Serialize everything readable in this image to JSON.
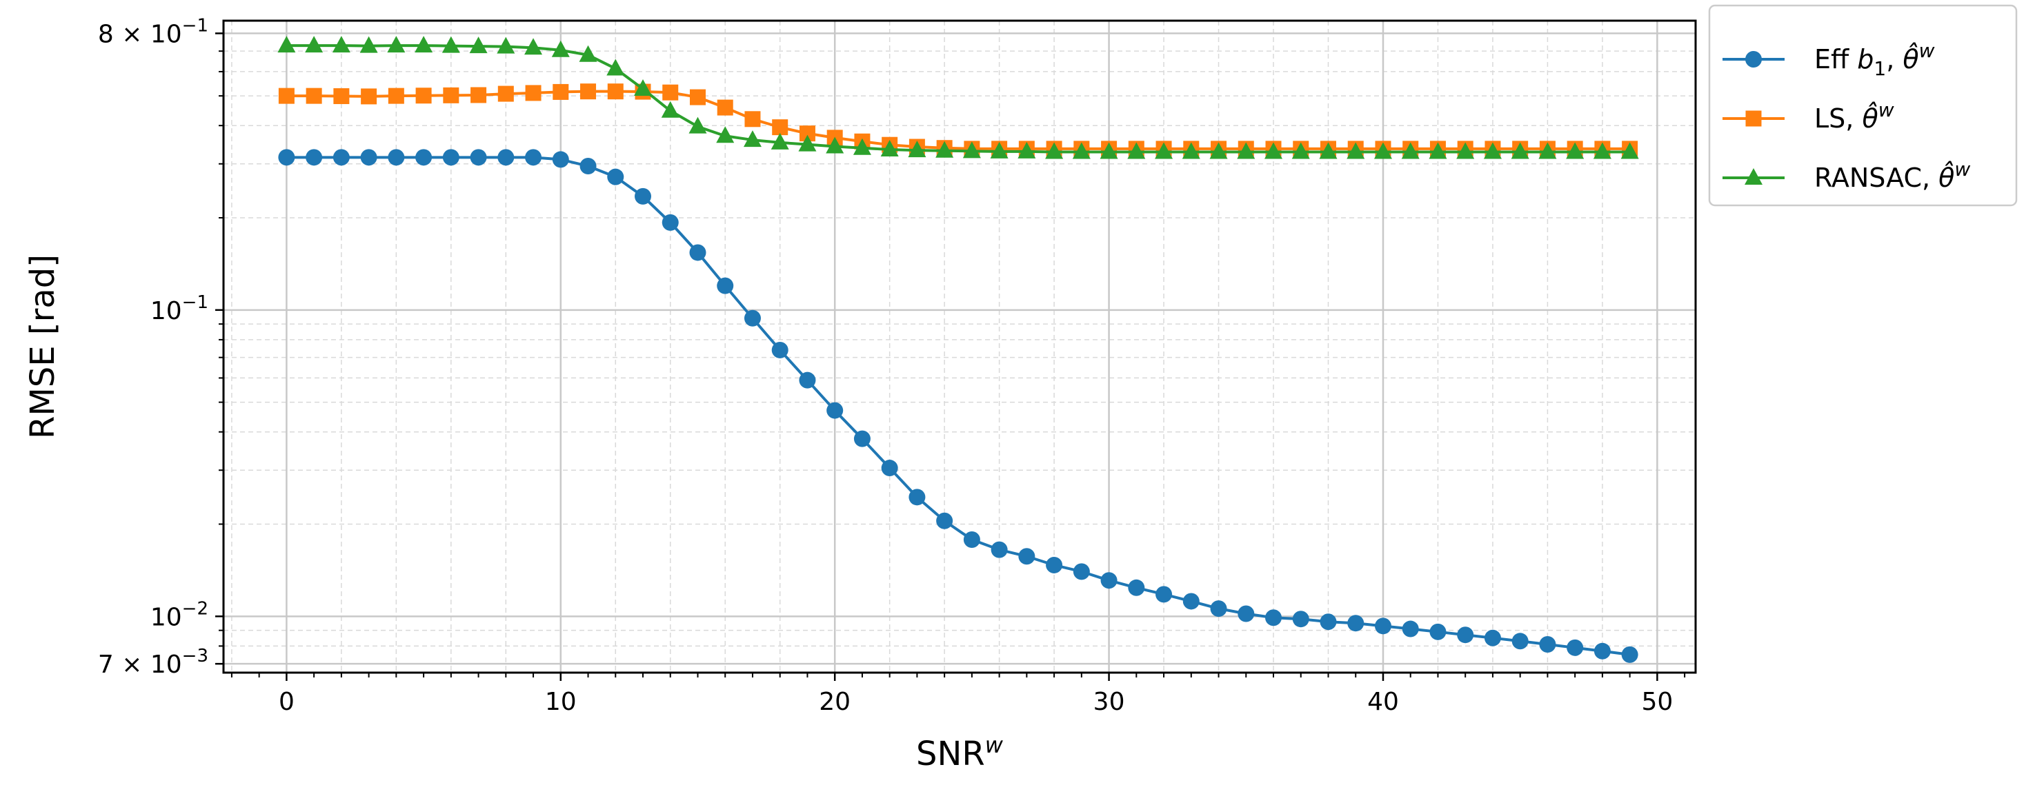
{
  "chart_data": {
    "type": "line",
    "title": "",
    "xlabel_base": "SNR",
    "xlabel_sup": "w",
    "ylabel": "RMSE [rad]",
    "yscale": "log",
    "xlim": [
      -2.3,
      51.4
    ],
    "ylim": [
      0.00655,
      0.88
    ],
    "x_ticks": [
      0,
      10,
      20,
      30,
      40,
      50
    ],
    "y_ticks": [
      {
        "value": 0.8,
        "base": "8 × 10",
        "exp": "−1"
      },
      {
        "value": 0.1,
        "base": "10",
        "exp": "−1"
      },
      {
        "value": 0.01,
        "base": "10",
        "exp": "−2"
      },
      {
        "value": 0.007,
        "base": "7 × 10",
        "exp": "−3"
      }
    ],
    "grid": true,
    "legend_position": "outside-top-right",
    "x": [
      0,
      1,
      2,
      3,
      4,
      5,
      6,
      7,
      8,
      9,
      10,
      11,
      12,
      13,
      14,
      15,
      16,
      17,
      18,
      19,
      20,
      21,
      22,
      23,
      24,
      25,
      26,
      27,
      28,
      29,
      30,
      31,
      32,
      33,
      34,
      35,
      36,
      37,
      38,
      39,
      40,
      41,
      42,
      43,
      44,
      45,
      46,
      47,
      48,
      49
    ],
    "series": [
      {
        "name": "Eff b₁, θ̂ʷ",
        "label_parts": [
          "Eff ",
          "b",
          "1",
          ", ",
          "θ̂",
          "w"
        ],
        "color": "#1f77b4",
        "marker": "circle",
        "values": [
          0.315,
          0.315,
          0.315,
          0.315,
          0.315,
          0.315,
          0.315,
          0.315,
          0.315,
          0.315,
          0.31,
          0.295,
          0.272,
          0.235,
          0.193,
          0.154,
          0.12,
          0.094,
          0.074,
          0.059,
          0.047,
          0.038,
          0.0305,
          0.0245,
          0.0205,
          0.0178,
          0.0165,
          0.0157,
          0.0147,
          0.014,
          0.0131,
          0.0124,
          0.0118,
          0.0112,
          0.0106,
          0.0102,
          0.0099,
          0.0098,
          0.0096,
          0.0095,
          0.0093,
          0.0091,
          0.0089,
          0.0087,
          0.0085,
          0.0083,
          0.0081,
          0.0079,
          0.0077,
          0.0075
        ]
      },
      {
        "name": "LS, θ̂ʷ",
        "label_parts": [
          "LS, ",
          "θ̂",
          "w"
        ],
        "color": "#ff7f0e",
        "marker": "square",
        "values": [
          0.5,
          0.5,
          0.499,
          0.498,
          0.5,
          0.501,
          0.502,
          0.503,
          0.508,
          0.511,
          0.515,
          0.517,
          0.517,
          0.516,
          0.513,
          0.495,
          0.458,
          0.42,
          0.395,
          0.377,
          0.365,
          0.355,
          0.346,
          0.341,
          0.338,
          0.336,
          0.336,
          0.336,
          0.336,
          0.336,
          0.336,
          0.336,
          0.336,
          0.336,
          0.336,
          0.336,
          0.336,
          0.336,
          0.336,
          0.336,
          0.336,
          0.336,
          0.336,
          0.336,
          0.336,
          0.336,
          0.336,
          0.336,
          0.336,
          0.336
        ]
      },
      {
        "name": "RANSAC, θ̂ʷ",
        "label_parts": [
          "RANSAC, ",
          "θ̂",
          "w"
        ],
        "color": "#2ca02c",
        "marker": "triangle",
        "values": [
          0.73,
          0.73,
          0.73,
          0.728,
          0.73,
          0.73,
          0.728,
          0.726,
          0.724,
          0.718,
          0.705,
          0.68,
          0.614,
          0.527,
          0.447,
          0.397,
          0.37,
          0.359,
          0.352,
          0.347,
          0.342,
          0.338,
          0.334,
          0.332,
          0.331,
          0.33,
          0.329,
          0.329,
          0.328,
          0.328,
          0.328,
          0.328,
          0.328,
          0.328,
          0.328,
          0.328,
          0.328,
          0.328,
          0.328,
          0.328,
          0.328,
          0.328,
          0.328,
          0.328,
          0.328,
          0.328,
          0.328,
          0.328,
          0.328,
          0.328
        ]
      }
    ]
  }
}
